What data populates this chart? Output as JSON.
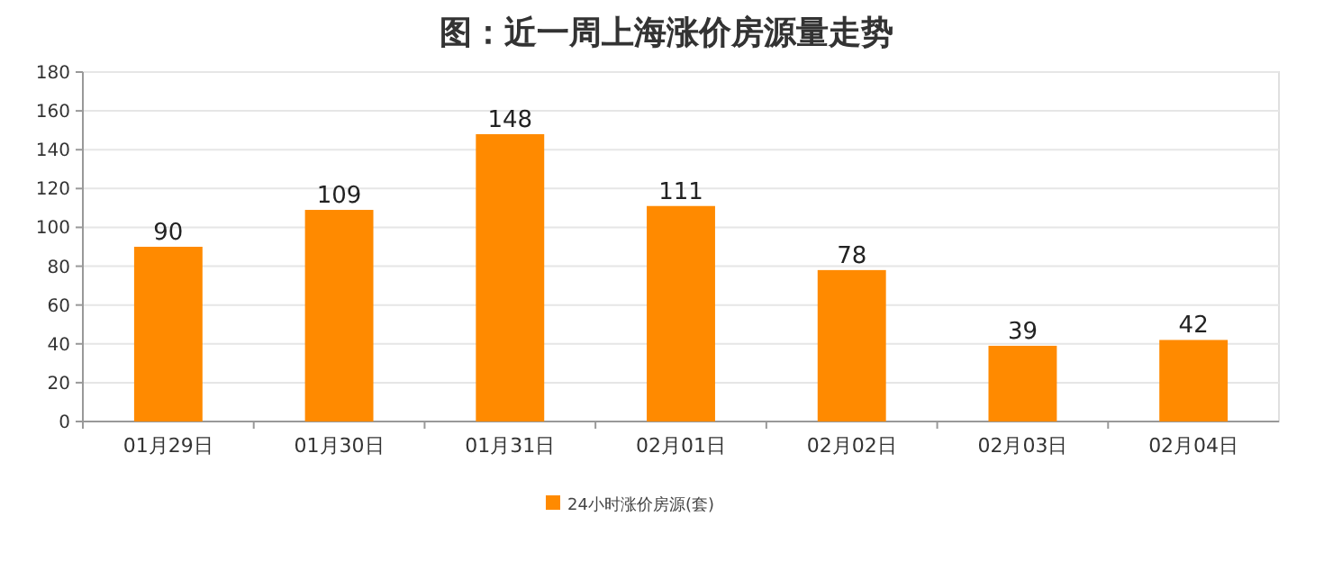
{
  "chart_data": {
    "type": "bar",
    "title": "图：近一周上海涨价房源量走势",
    "categories": [
      "01月29日",
      "01月30日",
      "01月31日",
      "02月01日",
      "02月02日",
      "02月03日",
      "02月04日"
    ],
    "series": [
      {
        "name": "24小时涨价房源(套)",
        "color": "#ff8a00",
        "values": [
          90,
          109,
          148,
          111,
          78,
          39,
          42
        ]
      }
    ],
    "ylim": [
      0,
      180
    ],
    "yticks": [
      0,
      20,
      40,
      60,
      80,
      100,
      120,
      140,
      160,
      180
    ],
    "grid": "y",
    "legend": "bottom",
    "data_labels": true
  }
}
